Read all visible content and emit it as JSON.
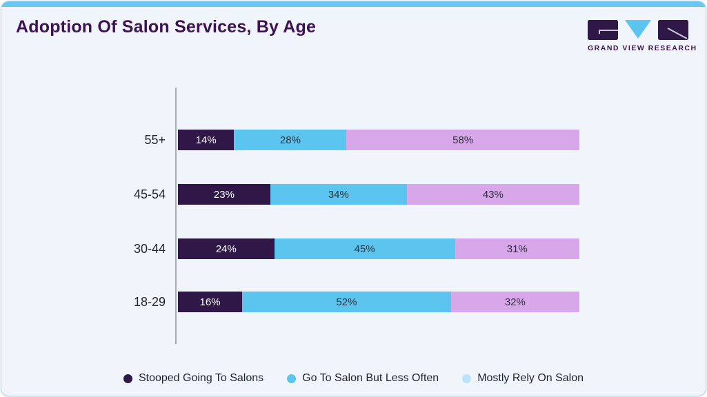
{
  "header": {
    "title": "Adoption Of Salon Services, By Age"
  },
  "logo": {
    "brand_text": "GRAND VIEW RESEARCH"
  },
  "colors": {
    "accent_strip": "#68c8f2",
    "title": "#3d1152",
    "card_background": "#eff5fa",
    "axis_line": "#a6aaae"
  },
  "chart_data": {
    "type": "bar",
    "subtype": "horizontal-stacked",
    "title": "Adoption Of Salon Services, By Age",
    "categories": [
      "55+",
      "45-54",
      "30-44",
      "18-29"
    ],
    "series": [
      {
        "name": "Stooped Going To Salons",
        "color": "#2f1747",
        "legend_color": "#2f1747",
        "label_color": "#ffffff",
        "values": [
          14,
          23,
          24,
          16
        ]
      },
      {
        "name": "Go To Salon But Less Often",
        "color": "#5bc5ef",
        "legend_color": "#5bc5ef",
        "label_color": "#2b303b",
        "values": [
          28,
          34,
          45,
          52
        ]
      },
      {
        "name": "Mostly Rely On Salon",
        "color": "#d7a7ea",
        "legend_color": "#bce3f9",
        "label_color": "#2b303b",
        "values": [
          58,
          43,
          31,
          32
        ]
      }
    ],
    "value_suffix": "%",
    "xlim": [
      0,
      100
    ],
    "grid": false,
    "legend_position": "bottom"
  }
}
